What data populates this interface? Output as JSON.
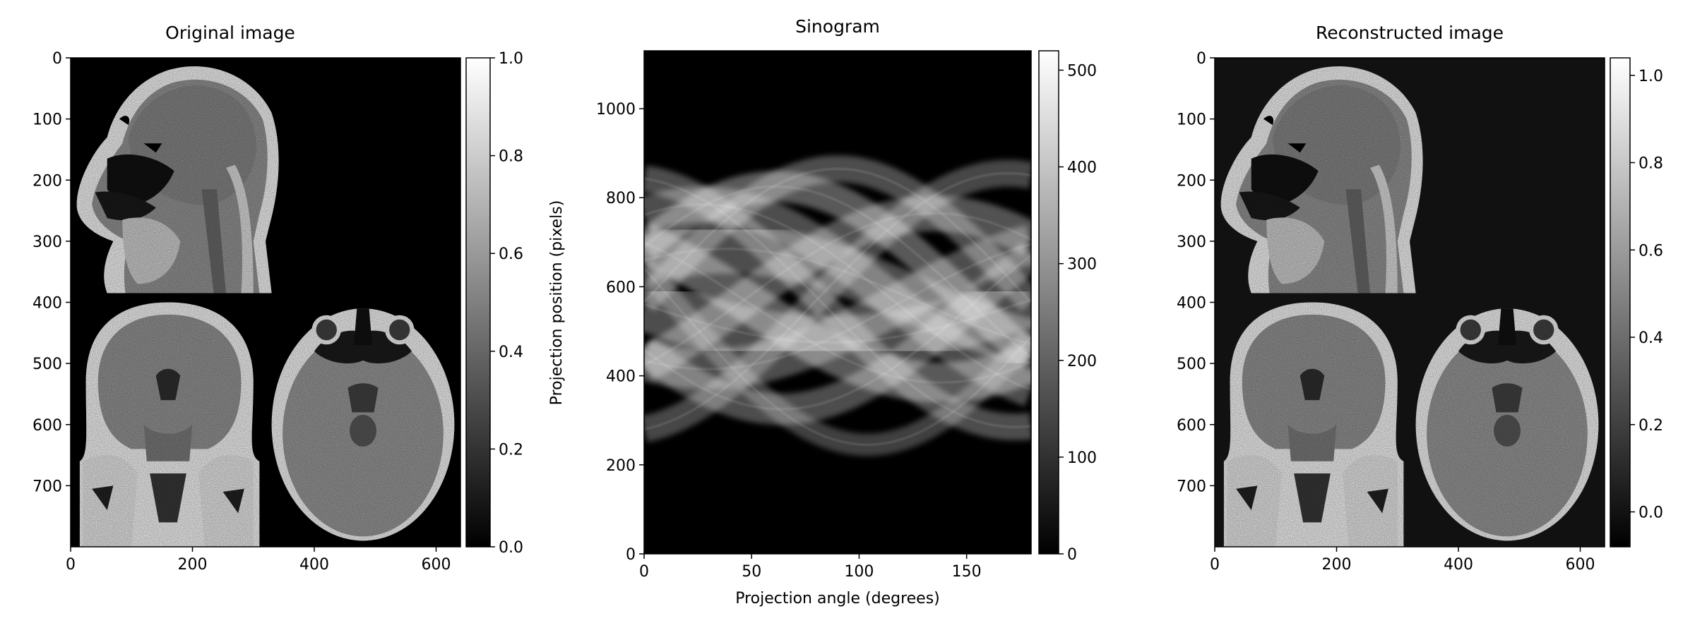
{
  "chart_data": [
    {
      "type": "heatmap",
      "title": "Original image",
      "xlabel": "",
      "ylabel": "",
      "xlim": [
        0,
        640
      ],
      "ylim": [
        800,
        0
      ],
      "xticks": [
        0,
        200,
        400,
        600
      ],
      "yticks": [
        0,
        100,
        200,
        300,
        400,
        500,
        600,
        700
      ],
      "colorbar": {
        "range": [
          0.0,
          1.0
        ],
        "ticks": [
          "0.0",
          "0.2",
          "0.4",
          "0.6",
          "0.8",
          "1.0"
        ],
        "colormap": "gray"
      },
      "background": "#000000",
      "content": "composite CT: sagittal head (top-left), coronal head (bottom-left), axial head (bottom-right)"
    },
    {
      "type": "heatmap",
      "title": "Sinogram",
      "xlabel": "Projection angle (degrees)",
      "ylabel": "Projection position (pixels)",
      "xlim": [
        0,
        180
      ],
      "ylim": [
        0,
        1130
      ],
      "xticks": [
        0,
        50,
        100,
        150
      ],
      "yticks": [
        0,
        200,
        400,
        600,
        800,
        1000
      ],
      "colorbar": {
        "range": [
          0,
          520
        ],
        "ticks": [
          "0",
          "100",
          "200",
          "300",
          "400",
          "500"
        ],
        "colormap": "gray"
      },
      "background": "#000000"
    },
    {
      "type": "heatmap",
      "title": "Reconstructed image",
      "xlabel": "",
      "ylabel": "",
      "xlim": [
        0,
        640
      ],
      "ylim": [
        800,
        0
      ],
      "xticks": [
        0,
        200,
        400,
        600
      ],
      "yticks": [
        0,
        100,
        200,
        300,
        400,
        500,
        600,
        700
      ],
      "colorbar": {
        "range": [
          -0.08,
          1.04
        ],
        "ticks": [
          "0.0",
          "0.2",
          "0.4",
          "0.6",
          "0.8",
          "1.0"
        ],
        "colormap": "gray"
      },
      "background": "#111111",
      "content": "reconstruction of the composite CT image"
    }
  ]
}
